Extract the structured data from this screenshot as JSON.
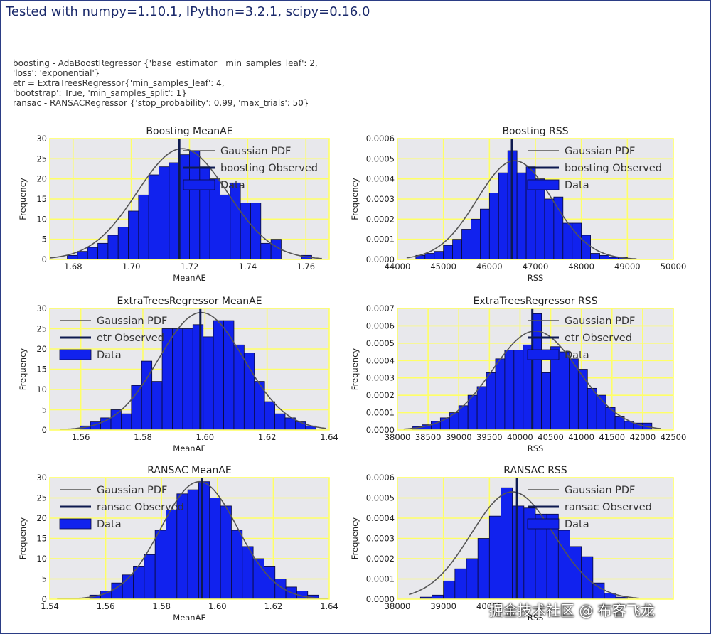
{
  "header": {
    "title": "Tested with numpy=1.10.1, IPython=3.2.1, scipy=0.16.0"
  },
  "params": [
    "boosting - AdaBoostRegressor {'base_estimator__min_samples_leaf': 2,",
    "'loss': 'exponential'}",
    "etr = ExtraTreesRegressor{'min_samples_leaf': 4,",
    "'bootstrap': True, 'min_samples_split': 1}",
    "ransac - RANSACRegressor {'stop_probability': 0.99, 'max_trials': 50}"
  ],
  "watermark": "掘金技术社区 @ 布客飞龙",
  "colors": {
    "panel_bg": "#e8e8ec",
    "grid": "#ffff66",
    "bar": "#1122ee",
    "bar_edge": "#0a0a3a",
    "pdf": "#555555",
    "observed": "#0e1a50"
  },
  "chart_data": [
    {
      "type": "bar",
      "title": "Boosting MeanAE",
      "xlabel": "MeanAE",
      "ylabel": "Frequency",
      "xlim": [
        1.672,
        1.768
      ],
      "ylim": [
        0,
        30
      ],
      "xticks": [
        1.68,
        1.7,
        1.72,
        1.74,
        1.76
      ],
      "xtick_labels": [
        "1.68",
        "1.70",
        "1.72",
        "1.74",
        "1.76"
      ],
      "yticks": [
        0,
        5,
        10,
        15,
        20,
        25,
        30
      ],
      "ytick_labels": [
        "0",
        "5",
        "10",
        "15",
        "20",
        "25",
        "30"
      ],
      "bins": [
        1.6745,
        1.678,
        1.6815,
        1.685,
        1.6885,
        1.692,
        1.6955,
        1.699,
        1.7025,
        1.706,
        1.7095,
        1.713,
        1.7165,
        1.72,
        1.7235,
        1.727,
        1.7305,
        1.734,
        1.7375,
        1.741,
        1.7445,
        1.748,
        1.7515,
        1.755,
        1.7585,
        1.762
      ],
      "counts": [
        0,
        1,
        2,
        3,
        4,
        6,
        8,
        12,
        16,
        21,
        23,
        24,
        26,
        27,
        23,
        20,
        16,
        19,
        14,
        14,
        4,
        5,
        0,
        0,
        1
      ],
      "pdf": {
        "mean": 1.7175,
        "std": 0.0155,
        "peak": 27.5
      },
      "observed": 1.7165,
      "legend": [
        "Gaussian PDF",
        "boosting Observed",
        "Data"
      ],
      "legend_loc": "top-right"
    },
    {
      "type": "bar",
      "title": "Boosting RSS",
      "xlabel": "RSS",
      "ylabel": "Frequency",
      "xlim": [
        44000,
        50000
      ],
      "ylim": [
        0,
        0.0006
      ],
      "xticks": [
        44000,
        45000,
        46000,
        47000,
        48000,
        49000,
        50000
      ],
      "xtick_labels": [
        "44000",
        "45000",
        "46000",
        "47000",
        "48000",
        "49000",
        "50000"
      ],
      "yticks": [
        0,
        0.0001,
        0.0002,
        0.0003,
        0.0004,
        0.0005,
        0.0006
      ],
      "ytick_labels": [
        "0.0000",
        "0.0001",
        "0.0002",
        "0.0003",
        "0.0004",
        "0.0005",
        "0.0006"
      ],
      "bins": [
        44400,
        44600,
        44800,
        45000,
        45200,
        45400,
        45600,
        45800,
        46000,
        46200,
        46400,
        46600,
        46800,
        47000,
        47200,
        47400,
        47600,
        47800,
        48000,
        48200,
        48400,
        48600,
        48800,
        49000
      ],
      "counts": [
        2e-05,
        3e-05,
        4e-05,
        7e-05,
        0.0001,
        0.00015,
        0.0002,
        0.00025,
        0.00033,
        0.00043,
        0.00054,
        0.00043,
        0.00046,
        0.0004,
        0.0003,
        0.00031,
        0.00018,
        0.00018,
        0.00012,
        3e-05,
        2e-05,
        1e-05,
        1e-05
      ],
      "pdf": {
        "mean": 46550,
        "std": 820,
        "peak": 0.00049
      },
      "observed": 46490,
      "legend": [
        "Gaussian PDF",
        "boosting Observed",
        "Data"
      ],
      "legend_loc": "top-right"
    },
    {
      "type": "bar",
      "title": "ExtraTreesRegressor MeanAE",
      "xlabel": "MeanAE",
      "ylabel": "Frequency",
      "xlim": [
        1.55,
        1.64
      ],
      "ylim": [
        0,
        30
      ],
      "xticks": [
        1.56,
        1.58,
        1.6,
        1.62,
        1.64
      ],
      "xtick_labels": [
        "1.56",
        "1.58",
        "1.60",
        "1.62",
        "1.64"
      ],
      "yticks": [
        0,
        5,
        10,
        15,
        20,
        25,
        30
      ],
      "ytick_labels": [
        "0",
        "5",
        "10",
        "15",
        "20",
        "25",
        "30"
      ],
      "bins": [
        1.5565,
        1.5598,
        1.5631,
        1.5664,
        1.5697,
        1.573,
        1.5763,
        1.5796,
        1.5829,
        1.5862,
        1.5895,
        1.5928,
        1.5961,
        1.5994,
        1.6027,
        1.606,
        1.6093,
        1.6126,
        1.6159,
        1.6192,
        1.6225,
        1.6258,
        1.6291,
        1.6324,
        1.6357
      ],
      "counts": [
        0,
        1,
        2,
        3,
        5,
        4,
        11,
        17,
        12,
        25,
        25,
        25,
        26,
        23,
        27,
        27,
        21,
        19,
        12,
        7,
        4,
        3,
        2,
        1
      ],
      "pdf": {
        "mean": 1.5988,
        "std": 0.0137,
        "peak": 29
      },
      "observed": 1.5985,
      "legend": [
        "Gaussian PDF",
        "etr Observed",
        "Data"
      ],
      "legend_loc": "top-left"
    },
    {
      "type": "bar",
      "title": "ExtraTreesRegressor RSS",
      "xlabel": "RSS",
      "ylabel": "Frequency",
      "xlim": [
        38000,
        42500
      ],
      "ylim": [
        0,
        0.0007
      ],
      "xticks": [
        38000,
        38500,
        39000,
        39500,
        40000,
        40500,
        41000,
        41500,
        42000,
        42500
      ],
      "xtick_labels": [
        "38000",
        "38500",
        "39000",
        "39500",
        "40000",
        "40500",
        "41000",
        "41500",
        "42000",
        "42500"
      ],
      "yticks": [
        0,
        0.0001,
        0.0002,
        0.0003,
        0.0004,
        0.0005,
        0.0006,
        0.0007
      ],
      "ytick_labels": [
        "0.0000",
        "0.0001",
        "0.0002",
        "0.0003",
        "0.0004",
        "0.0005",
        "0.0006",
        "0.0007"
      ],
      "bins": [
        38250,
        38400,
        38550,
        38700,
        38850,
        39000,
        39150,
        39300,
        39450,
        39600,
        39750,
        39900,
        40050,
        40200,
        40350,
        40500,
        40650,
        40800,
        40950,
        41100,
        41250,
        41400,
        41550,
        41700,
        41850,
        42000,
        42150
      ],
      "counts": [
        2e-05,
        3e-05,
        5e-05,
        7e-05,
        0.0001,
        0.00014,
        0.0002,
        0.00025,
        0.00033,
        0.00041,
        0.00046,
        0.00046,
        0.00049,
        0.00067,
        0.00033,
        0.00048,
        0.00045,
        0.00041,
        0.00035,
        0.00024,
        0.0002,
        0.00013,
        8e-05,
        5e-05,
        4e-05,
        4e-05
      ],
      "pdf": {
        "mean": 40250,
        "std": 700,
        "peak": 0.00057
      },
      "observed": 40200,
      "legend": [
        "Gaussian PDF",
        "etr Observed",
        "Data"
      ],
      "legend_loc": "top-right"
    },
    {
      "type": "bar",
      "title": "RANSAC MeanAE",
      "xlabel": "MeanAE",
      "ylabel": "Frequency",
      "xlim": [
        1.54,
        1.64
      ],
      "ylim": [
        0,
        30
      ],
      "xticks": [
        1.54,
        1.56,
        1.58,
        1.6,
        1.62,
        1.64
      ],
      "xtick_labels": [
        "1.54",
        "1.56",
        "1.58",
        "1.60",
        "1.62",
        "1.64"
      ],
      "yticks": [
        0,
        5,
        10,
        15,
        20,
        25,
        30
      ],
      "ytick_labels": [
        "0",
        "5",
        "10",
        "15",
        "20",
        "25",
        "30"
      ],
      "bins": [
        1.5465,
        1.5504,
        1.5543,
        1.5582,
        1.5621,
        1.566,
        1.5699,
        1.5738,
        1.5777,
        1.5816,
        1.5855,
        1.5894,
        1.5933,
        1.5972,
        1.6011,
        1.605,
        1.6089,
        1.6128,
        1.6167,
        1.6206,
        1.6245,
        1.6284,
        1.6323,
        1.6362
      ],
      "counts": [
        0,
        0,
        1,
        2,
        4,
        6,
        8,
        11,
        17,
        22,
        26,
        27,
        29,
        25,
        23,
        17,
        13,
        10,
        8,
        5,
        3,
        2,
        1
      ],
      "pdf": {
        "mean": 1.5935,
        "std": 0.0137,
        "peak": 29
      },
      "observed": 1.5945,
      "legend": [
        "Gaussian PDF",
        "ransac Observed",
        "Data"
      ],
      "legend_loc": "top-left"
    },
    {
      "type": "bar",
      "title": "RANSAC RSS",
      "xlabel": "RSS",
      "ylabel": "Frequency",
      "xlim": [
        38000,
        44000
      ],
      "ylim": [
        0,
        0.0006
      ],
      "xticks": [
        38000,
        39000,
        40000
      ],
      "xtick_labels": [
        "38000",
        "39000",
        "40000"
      ],
      "yticks": [
        0,
        0.0001,
        0.0002,
        0.0003,
        0.0004,
        0.0005,
        0.0006
      ],
      "ytick_labels": [
        "0.0000",
        "0.0001",
        "0.0002",
        "0.0003",
        "0.0004",
        "0.0005",
        "0.0006"
      ],
      "bins": [
        38500,
        38750,
        39000,
        39250,
        39500,
        39750,
        40000,
        40250,
        40500,
        40750,
        41000,
        41250,
        41500,
        41750,
        42000,
        42250,
        42500,
        42750,
        43000
      ],
      "counts": [
        1e-05,
        2e-05,
        9e-05,
        0.00015,
        0.0002,
        0.0003,
        0.00041,
        0.00055,
        0.00046,
        0.00045,
        0.00042,
        0.00042,
        0.00034,
        0.00026,
        0.00021,
        8e-05,
        3e-05,
        1e-05
      ],
      "pdf": {
        "mean": 40500,
        "std": 900,
        "peak": 0.00053
      },
      "observed": 40600,
      "legend": [
        "Gaussian PDF",
        "ransac Observed",
        "Data"
      ],
      "legend_loc": "top-right"
    }
  ]
}
